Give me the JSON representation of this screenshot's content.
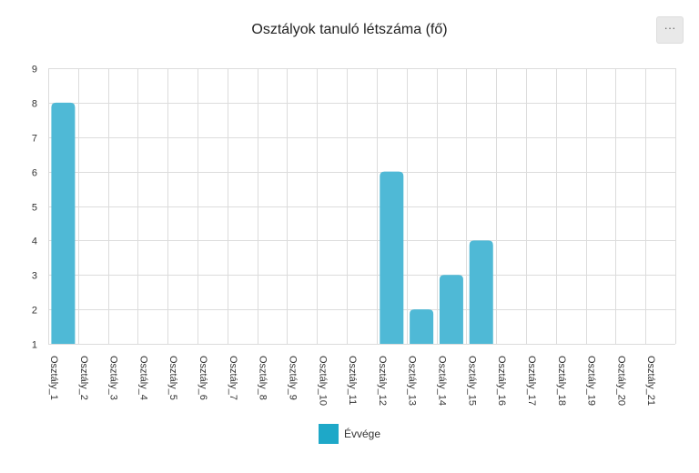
{
  "chart_data": {
    "type": "bar",
    "title": "Osztályok tanuló létszáma (fő)",
    "categories": [
      "Osztály_1",
      "Osztály_2",
      "Osztály_3",
      "Osztály_4",
      "Osztály_5",
      "Osztály_6",
      "Osztály_7",
      "Osztály_8",
      "Osztály_9",
      "Osztály_10",
      "Osztály_11",
      "Osztály_12",
      "Osztály_13",
      "Osztály_14",
      "Osztály_15",
      "Osztály_16",
      "Osztály_17",
      "Osztály_18",
      "Osztály_19",
      "Osztály_20",
      "Osztály_21"
    ],
    "series": [
      {
        "name": "Évvége",
        "color": "#1ea8c8",
        "values": [
          8,
          null,
          null,
          null,
          null,
          null,
          null,
          null,
          null,
          null,
          null,
          6,
          2,
          3,
          4,
          null,
          null,
          null,
          null,
          null,
          null
        ]
      }
    ],
    "xlabel": "",
    "ylabel": "",
    "ylim": [
      1,
      9
    ],
    "yticks": [
      1,
      2,
      3,
      4,
      5,
      6,
      7,
      8,
      9
    ],
    "grid": true,
    "legend_position": "bottom"
  },
  "menu": {
    "label": "···",
    "icon": "more-options-icon"
  }
}
